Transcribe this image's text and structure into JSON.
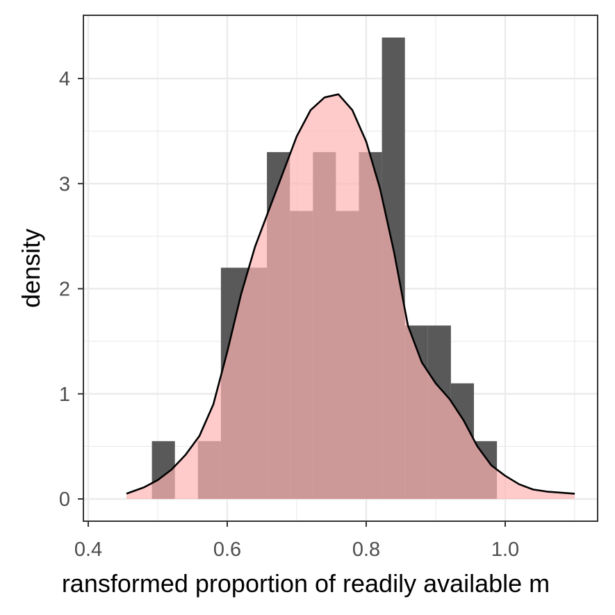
{
  "chart_data": {
    "type": "histogram",
    "xlabel": "ransformed proportion of readily available m",
    "ylabel": "density",
    "xlim": [
      0.4,
      1.1
    ],
    "ylim": [
      0,
      4.4
    ],
    "x_ticks": [
      0.4,
      0.6,
      0.8,
      1.0
    ],
    "x_tick_labels": [
      "0.4",
      "0.6",
      "0.8",
      "1.0"
    ],
    "y_ticks": [
      0,
      1,
      2,
      3,
      4
    ],
    "y_tick_labels": [
      "0",
      "1",
      "2",
      "3",
      "4"
    ],
    "grid": true,
    "theme": "bw",
    "histogram": {
      "bins": [
        {
          "x0": 0.4916,
          "x1": 0.5247,
          "density": 0.55
        },
        {
          "x0": 0.5247,
          "x1": 0.5578,
          "density": 0.0
        },
        {
          "x0": 0.5578,
          "x1": 0.5909,
          "density": 0.55
        },
        {
          "x0": 0.5909,
          "x1": 0.624,
          "density": 2.2
        },
        {
          "x0": 0.624,
          "x1": 0.6571,
          "density": 2.2
        },
        {
          "x0": 0.6571,
          "x1": 0.6902,
          "density": 3.3
        },
        {
          "x0": 0.6902,
          "x1": 0.7233,
          "density": 2.74
        },
        {
          "x0": 0.7233,
          "x1": 0.7564,
          "density": 3.3
        },
        {
          "x0": 0.7564,
          "x1": 0.7895,
          "density": 2.74
        },
        {
          "x0": 0.7895,
          "x1": 0.8226,
          "density": 3.3
        },
        {
          "x0": 0.8226,
          "x1": 0.8557,
          "density": 4.39
        },
        {
          "x0": 0.8557,
          "x1": 0.8888,
          "density": 1.65
        },
        {
          "x0": 0.8888,
          "x1": 0.9219,
          "density": 1.65
        },
        {
          "x0": 0.9219,
          "x1": 0.955,
          "density": 1.1
        },
        {
          "x0": 0.955,
          "x1": 0.9881,
          "density": 0.55
        }
      ],
      "color": "#595959"
    },
    "density_curve": {
      "x": [
        0.455,
        0.48,
        0.5,
        0.52,
        0.54,
        0.56,
        0.58,
        0.6,
        0.62,
        0.64,
        0.66,
        0.68,
        0.7,
        0.72,
        0.74,
        0.76,
        0.78,
        0.8,
        0.82,
        0.84,
        0.86,
        0.88,
        0.9,
        0.92,
        0.94,
        0.96,
        0.98,
        1.0,
        1.02,
        1.04,
        1.06,
        1.08,
        1.1
      ],
      "y": [
        0.05,
        0.11,
        0.18,
        0.28,
        0.42,
        0.6,
        0.9,
        1.4,
        1.95,
        2.4,
        2.75,
        3.1,
        3.45,
        3.7,
        3.82,
        3.85,
        3.7,
        3.4,
        2.95,
        2.35,
        1.65,
        1.3,
        1.1,
        0.95,
        0.75,
        0.5,
        0.32,
        0.22,
        0.14,
        0.09,
        0.07,
        0.06,
        0.05
      ],
      "fill": "#ffb3b3",
      "fill_opacity": 0.7,
      "line_color": "#000000"
    }
  }
}
